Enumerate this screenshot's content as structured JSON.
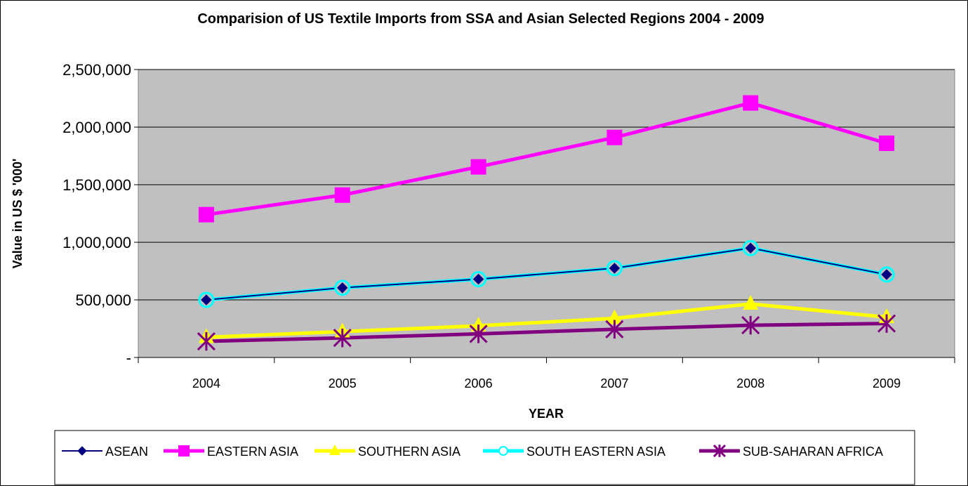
{
  "chart_data": {
    "type": "line",
    "title": "Comparision of US Textile Imports from SSA and Asian Selected Regions 2004 - 2009",
    "xlabel": "YEAR",
    "ylabel": "Value in US $ '000'",
    "categories": [
      "2004",
      "2005",
      "2006",
      "2007",
      "2008",
      "2009"
    ],
    "ylim": [
      0,
      2500000
    ],
    "yticks": [
      0,
      500000,
      1000000,
      1500000,
      2000000,
      2500000
    ],
    "ytick_labels": [
      "-",
      "500,000",
      "1,000,000",
      "1,500,000",
      "2,000,000",
      "2,500,000"
    ],
    "plot_background": "#c0c0c0",
    "grid": true,
    "legend_position": "bottom",
    "series": [
      {
        "name": "ASEAN",
        "color": "#000080",
        "marker": "diamond",
        "values": [
          500000,
          605000,
          680000,
          775000,
          950000,
          720000
        ]
      },
      {
        "name": "EASTERN ASIA",
        "color": "#ff00ff",
        "marker": "square",
        "values": [
          1240000,
          1410000,
          1655000,
          1910000,
          2210000,
          1860000
        ]
      },
      {
        "name": "SOUTHERN ASIA",
        "color": "#ffff00",
        "marker": "triangle",
        "values": [
          175000,
          225000,
          275000,
          340000,
          465000,
          350000
        ]
      },
      {
        "name": "SOUTH EASTERN ASIA",
        "color": "#00ffff",
        "marker": "circle",
        "values": [
          500000,
          605000,
          680000,
          775000,
          950000,
          720000
        ]
      },
      {
        "name": "SUB-SAHARAN AFRICA",
        "color": "#800080",
        "marker": "star",
        "values": [
          140000,
          170000,
          205000,
          245000,
          280000,
          295000
        ]
      }
    ]
  }
}
